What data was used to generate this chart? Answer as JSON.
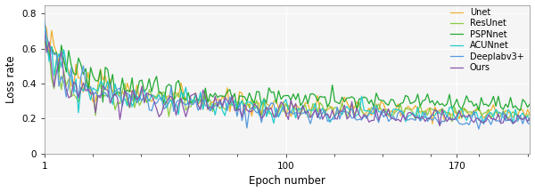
{
  "title": "",
  "xlabel": "Epoch number",
  "ylabel": "Loss rate",
  "xlim": [
    1,
    200
  ],
  "ylim": [
    0,
    0.85
  ],
  "yticks": [
    0,
    0.2,
    0.4,
    0.6,
    0.8
  ],
  "xticks": [
    1,
    100,
    170
  ],
  "legend_labels": [
    "Unet",
    "ResUnet",
    "PSPNnet",
    "ACUNnet",
    "Deeplabv3+",
    "Ours"
  ],
  "colors": [
    "#f0b030",
    "#88cc44",
    "#22aa33",
    "#22cccc",
    "#5599dd",
    "#8855aa"
  ],
  "linewidths": [
    0.9,
    0.9,
    0.9,
    0.9,
    0.9,
    0.9
  ],
  "plot_bg": "#f5f5f5",
  "fig_bg": "#ffffff",
  "grid_color": "#ffffff",
  "seed": 42,
  "epochs": 200
}
